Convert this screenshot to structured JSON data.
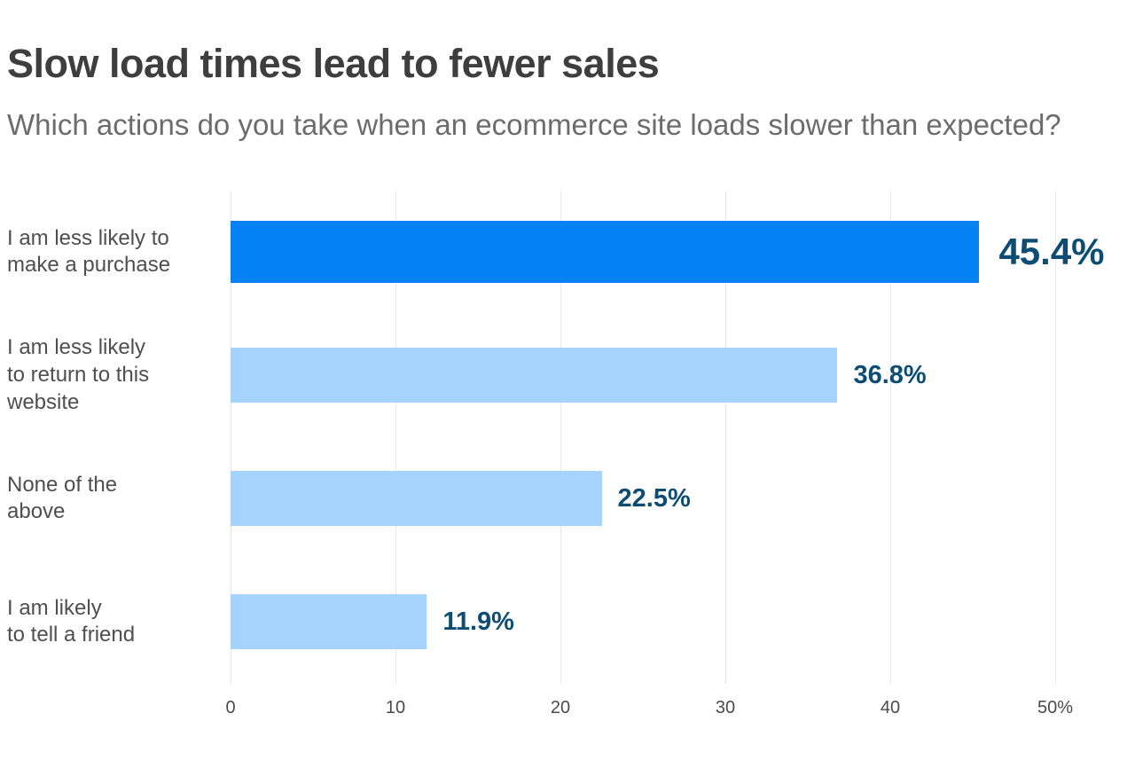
{
  "header": {
    "title": "Slow load times lead to fewer sales",
    "subtitle": "Which actions do you take when an ecommerce site loads slower than expected?"
  },
  "colors": {
    "primary_bar": "#0682f5",
    "secondary_bar": "#a6d3fb",
    "value_label": "#0e4d73",
    "title_text": "#3e3e3e",
    "subtitle_text": "#6c6c6c",
    "axis_text": "#4b4b4b",
    "gridline": "#e7e7e7"
  },
  "chart_data": {
    "type": "bar",
    "orientation": "horizontal",
    "title": "Slow load times lead to fewer sales",
    "subtitle": "Which actions do you take when an ecommerce site loads slower than expected?",
    "categories": [
      "I am less likely to make a purchase",
      "I am less likely to return to this website",
      "None of the above",
      "I am likely to tell a friend"
    ],
    "category_label_lines": [
      [
        "I am less likely to",
        "make a purchase"
      ],
      [
        "I am less likely",
        "to return to this",
        "website"
      ],
      [
        "None of the",
        "above"
      ],
      [
        "I am likely",
        "to tell a friend"
      ]
    ],
    "values": [
      45.4,
      36.8,
      22.5,
      11.9
    ],
    "value_labels": [
      "45.4%",
      "36.8%",
      "22.5%",
      "11.9%"
    ],
    "x_ticks": [
      "0",
      "10",
      "20",
      "30",
      "40",
      "50%"
    ],
    "x_tick_values": [
      0,
      10,
      20,
      30,
      40,
      50
    ],
    "xlim": [
      0,
      50
    ],
    "grid": true,
    "legend": "none",
    "highlight_index": 0
  }
}
